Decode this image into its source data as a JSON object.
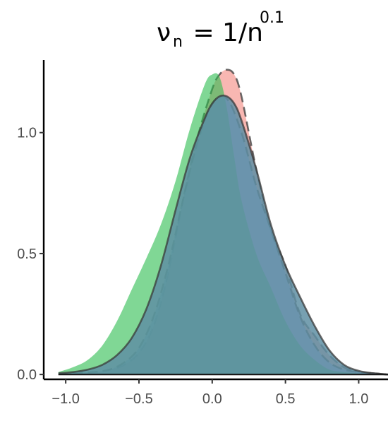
{
  "chart_data": {
    "type": "area",
    "title": {
      "symbol": "ν",
      "symbol_sub": "n",
      "middle": " = 1/n",
      "power": "0.1"
    },
    "xlabel": "",
    "ylabel": "",
    "xlim": [
      -1.15,
      1.2
    ],
    "ylim": [
      -0.02,
      1.3
    ],
    "x_ticks": [
      -1.0,
      -0.5,
      0.0,
      0.5,
      1.0
    ],
    "x_tick_labels": [
      "−1.0",
      "−0.5",
      "0.0",
      "0.5",
      "1.0"
    ],
    "y_ticks": [
      0.0,
      0.5,
      1.0
    ],
    "y_tick_labels": [
      "0.0",
      "0.5",
      "1.0"
    ],
    "grid": false,
    "legend": "none",
    "series": [
      {
        "fill": "#f4877e",
        "opacity": 0.6,
        "outline": "dashed",
        "x": [
          -0.95,
          -0.8,
          -0.7,
          -0.6,
          -0.5,
          -0.4,
          -0.3,
          -0.2,
          -0.1,
          0.0,
          0.05,
          0.1,
          0.15,
          0.2,
          0.3,
          0.4,
          0.5,
          0.6,
          0.7,
          0.8,
          0.9,
          1.0,
          1.1,
          1.2
        ],
        "y": [
          0.005,
          0.01,
          0.02,
          0.04,
          0.09,
          0.2,
          0.42,
          0.72,
          0.98,
          1.18,
          1.24,
          1.26,
          1.24,
          1.15,
          0.85,
          0.6,
          0.45,
          0.25,
          0.16,
          0.08,
          0.03,
          0.01,
          0.005,
          0.0
        ]
      },
      {
        "fill": "#7cabff",
        "opacity": 0.6,
        "outline": "dashed",
        "x": [
          -0.95,
          -0.8,
          -0.7,
          -0.6,
          -0.5,
          -0.4,
          -0.3,
          -0.2,
          -0.1,
          0.0,
          0.1,
          0.2,
          0.3,
          0.4,
          0.5,
          0.6,
          0.7,
          0.8,
          0.9,
          1.0,
          1.1,
          1.2
        ],
        "y": [
          0.005,
          0.01,
          0.02,
          0.05,
          0.11,
          0.24,
          0.45,
          0.72,
          0.96,
          1.12,
          1.14,
          1.0,
          0.78,
          0.6,
          0.42,
          0.24,
          0.12,
          0.05,
          0.02,
          0.01,
          0.005,
          0.0
        ]
      },
      {
        "fill": "#2bbd4e",
        "opacity": 0.6,
        "outline": "none",
        "x": [
          -1.05,
          -0.95,
          -0.85,
          -0.75,
          -0.65,
          -0.55,
          -0.45,
          -0.35,
          -0.25,
          -0.15,
          -0.05,
          0.0,
          0.05,
          0.1,
          0.15,
          0.2,
          0.3,
          0.4,
          0.5,
          0.6,
          0.7,
          0.8,
          0.9,
          1.0,
          1.1
        ],
        "y": [
          0.01,
          0.03,
          0.06,
          0.12,
          0.22,
          0.35,
          0.48,
          0.62,
          0.8,
          1.02,
          1.2,
          1.24,
          1.23,
          1.1,
          0.9,
          0.72,
          0.5,
          0.36,
          0.22,
          0.12,
          0.06,
          0.02,
          0.01,
          0.005,
          0.0
        ]
      },
      {
        "fill": "#5f8fa3",
        "opacity": 0.85,
        "outline": "solid",
        "x": [
          -1.05,
          -0.95,
          -0.85,
          -0.75,
          -0.65,
          -0.55,
          -0.45,
          -0.35,
          -0.25,
          -0.15,
          -0.05,
          0.0,
          0.05,
          0.1,
          0.15,
          0.2,
          0.3,
          0.4,
          0.5,
          0.6,
          0.7,
          0.8,
          0.9,
          1.0,
          1.1,
          1.2
        ],
        "y": [
          0.005,
          0.01,
          0.02,
          0.04,
          0.08,
          0.15,
          0.27,
          0.45,
          0.68,
          0.9,
          1.06,
          1.12,
          1.15,
          1.15,
          1.12,
          1.05,
          0.85,
          0.62,
          0.45,
          0.32,
          0.2,
          0.1,
          0.04,
          0.015,
          0.005,
          0.0
        ]
      }
    ]
  }
}
